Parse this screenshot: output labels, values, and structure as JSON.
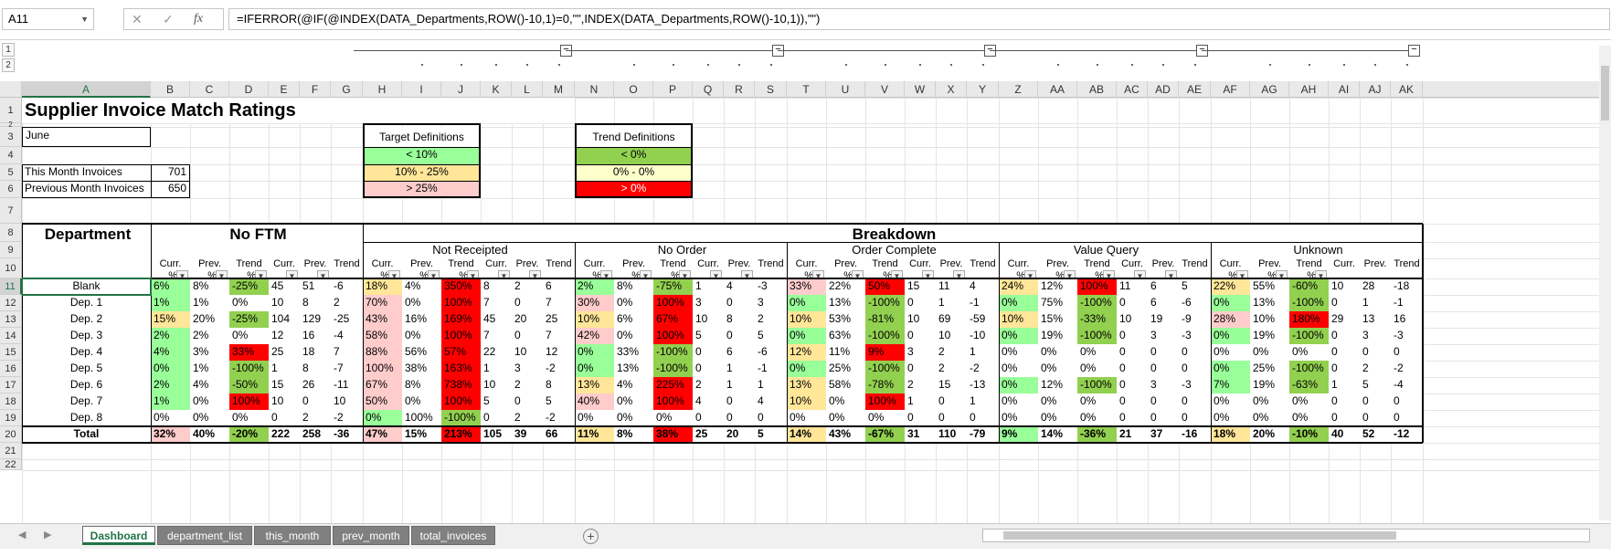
{
  "formula_bar": {
    "cell_ref": "A11",
    "cancel": "✕",
    "enter": "✓",
    "fx": "fx",
    "formula": "=IFERROR(@IF(@INDEX(DATA_Departments,ROW()-10,1)=0,\"\",INDEX(DATA_Departments,ROW()-10,1)),\"\")"
  },
  "outline": {
    "levels": [
      "1",
      "2"
    ],
    "collapse": "−"
  },
  "columns": [
    "A",
    "B",
    "C",
    "D",
    "E",
    "F",
    "G",
    "H",
    "I",
    "J",
    "K",
    "L",
    "M",
    "N",
    "O",
    "P",
    "Q",
    "R",
    "S",
    "T",
    "U",
    "V",
    "W",
    "X",
    "Y",
    "Z",
    "AA",
    "AB",
    "AC",
    "AD",
    "AE",
    "AF",
    "AG",
    "AH",
    "AI",
    "AJ",
    "AK"
  ],
  "rows": [
    "1",
    "2",
    "3",
    "4",
    "5",
    "6",
    "7",
    "8",
    "9",
    "10",
    "11",
    "12",
    "13",
    "14",
    "15",
    "16",
    "17",
    "18",
    "19",
    "20",
    "21",
    "22"
  ],
  "sheet": {
    "title": "Supplier Invoice Match Ratings",
    "month": "June",
    "this_month_label": "This Month Invoices",
    "this_month_value": "701",
    "prev_month_label": "Previous Month Invoices",
    "prev_month_value": "650",
    "target": {
      "title": "Target Definitions",
      "g": "< 10%",
      "y": "10% -  25%",
      "r": "> 25%"
    },
    "trend": {
      "title": "Trend Definitions",
      "g": "< 0%",
      "y": "0% -  0%",
      "r": "> 0%"
    },
    "department_header": "Department",
    "noftm_header": "No FTM",
    "breakdown_header": "Breakdown",
    "groups": [
      "Not Receipted",
      "No Order",
      "Order Complete",
      "Value Query",
      "Unknown"
    ],
    "sub_pct": [
      "Curr.",
      "%",
      "Prev.",
      "%",
      "Trend",
      "%"
    ],
    "sub_cnt": [
      "Curr.",
      "Prev.",
      "Trend"
    ],
    "departments": [
      "Blank",
      "Dep. 1",
      "Dep. 2",
      "Dep. 3",
      "Dep. 4",
      "Dep. 5",
      "Dep. 6",
      "Dep. 7",
      "Dep. 8",
      "Total"
    ],
    "data": [
      [
        "6%",
        "8%",
        "-25%",
        "45",
        "51",
        "-6",
        "18%",
        "4%",
        "350%",
        "8",
        "2",
        "6",
        "2%",
        "8%",
        "-75%",
        "1",
        "4",
        "-3",
        "33%",
        "22%",
        "50%",
        "15",
        "11",
        "4",
        "24%",
        "12%",
        "100%",
        "11",
        "6",
        "5",
        "22%",
        "55%",
        "-60%",
        "10",
        "28",
        "-18"
      ],
      [
        "1%",
        "1%",
        "0%",
        "10",
        "8",
        "2",
        "70%",
        "0%",
        "100%",
        "7",
        "0",
        "7",
        "30%",
        "0%",
        "100%",
        "3",
        "0",
        "3",
        "0%",
        "13%",
        "-100%",
        "0",
        "1",
        "-1",
        "0%",
        "75%",
        "-100%",
        "0",
        "6",
        "-6",
        "0%",
        "13%",
        "-100%",
        "0",
        "1",
        "-1"
      ],
      [
        "15%",
        "20%",
        "-25%",
        "104",
        "129",
        "-25",
        "43%",
        "16%",
        "169%",
        "45",
        "20",
        "25",
        "10%",
        "6%",
        "67%",
        "10",
        "8",
        "2",
        "10%",
        "53%",
        "-81%",
        "10",
        "69",
        "-59",
        "10%",
        "15%",
        "-33%",
        "10",
        "19",
        "-9",
        "28%",
        "10%",
        "180%",
        "29",
        "13",
        "16"
      ],
      [
        "2%",
        "2%",
        "0%",
        "12",
        "16",
        "-4",
        "58%",
        "0%",
        "100%",
        "7",
        "0",
        "7",
        "42%",
        "0%",
        "100%",
        "5",
        "0",
        "5",
        "0%",
        "63%",
        "-100%",
        "0",
        "10",
        "-10",
        "0%",
        "19%",
        "-100%",
        "0",
        "3",
        "-3",
        "0%",
        "19%",
        "-100%",
        "0",
        "3",
        "-3"
      ],
      [
        "4%",
        "3%",
        "33%",
        "25",
        "18",
        "7",
        "88%",
        "56%",
        "57%",
        "22",
        "10",
        "12",
        "0%",
        "33%",
        "-100%",
        "0",
        "6",
        "-6",
        "12%",
        "11%",
        "9%",
        "3",
        "2",
        "1",
        "0%",
        "0%",
        "0%",
        "0",
        "0",
        "0",
        "0%",
        "0%",
        "0%",
        "0",
        "0",
        "0"
      ],
      [
        "0%",
        "1%",
        "-100%",
        "1",
        "8",
        "-7",
        "100%",
        "38%",
        "163%",
        "1",
        "3",
        "-2",
        "0%",
        "13%",
        "-100%",
        "0",
        "1",
        "-1",
        "0%",
        "25%",
        "-100%",
        "0",
        "2",
        "-2",
        "0%",
        "0%",
        "0%",
        "0",
        "0",
        "0",
        "0%",
        "25%",
        "-100%",
        "0",
        "2",
        "-2"
      ],
      [
        "2%",
        "4%",
        "-50%",
        "15",
        "26",
        "-11",
        "67%",
        "8%",
        "738%",
        "10",
        "2",
        "8",
        "13%",
        "4%",
        "225%",
        "2",
        "1",
        "1",
        "13%",
        "58%",
        "-78%",
        "2",
        "15",
        "-13",
        "0%",
        "12%",
        "-100%",
        "0",
        "3",
        "-3",
        "7%",
        "19%",
        "-63%",
        "1",
        "5",
        "-4"
      ],
      [
        "1%",
        "0%",
        "100%",
        "10",
        "0",
        "10",
        "50%",
        "0%",
        "100%",
        "5",
        "0",
        "5",
        "40%",
        "0%",
        "100%",
        "4",
        "0",
        "4",
        "10%",
        "0%",
        "100%",
        "1",
        "0",
        "1",
        "0%",
        "0%",
        "0%",
        "0",
        "0",
        "0",
        "0%",
        "0%",
        "0%",
        "0",
        "0",
        "0"
      ],
      [
        "0%",
        "0%",
        "0%",
        "0",
        "2",
        "-2",
        "0%",
        "100%",
        "-100%",
        "0",
        "2",
        "-2",
        "0%",
        "0%",
        "0%",
        "0",
        "0",
        "0",
        "0%",
        "0%",
        "0%",
        "0",
        "0",
        "0",
        "0%",
        "0%",
        "0%",
        "0",
        "0",
        "0",
        "0%",
        "0%",
        "0%",
        "0",
        "0",
        "0"
      ],
      [
        "32%",
        "40%",
        "-20%",
        "222",
        "258",
        "-36",
        "47%",
        "15%",
        "213%",
        "105",
        "39",
        "66",
        "11%",
        "8%",
        "38%",
        "25",
        "20",
        "5",
        "14%",
        "43%",
        "-67%",
        "31",
        "110",
        "-79",
        "9%",
        "14%",
        "-36%",
        "21",
        "37",
        "-16",
        "18%",
        "20%",
        "-10%",
        "40",
        "52",
        "-12"
      ]
    ]
  },
  "tabs": [
    "Dashboard",
    "department_list",
    "this_month",
    "prev_month",
    "total_invoices"
  ],
  "add_sheet": "+",
  "colors": {
    "green": "#99ff99",
    "yellow": "#ffe699",
    "pink": "#ffcccc",
    "trend_green": "#92d050",
    "trend_yellow": "#ffffcc",
    "red": "#ff0000",
    "excel_green": "#217346"
  }
}
